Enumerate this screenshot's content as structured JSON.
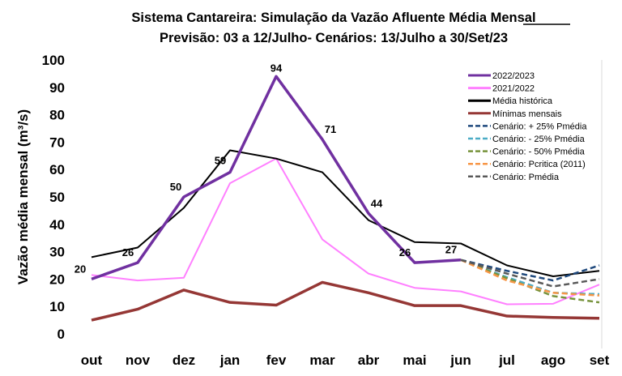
{
  "chart_data": {
    "type": "line",
    "title": "Sistema Cantareira: Simulação da Vazão Afluente Média Mensal",
    "title_underlined_word": "Mensal",
    "subtitle": "Previsão: 03 a 12/Julho- Cenários: 13/Julho a 30/Set/23",
    "xlabel": "",
    "ylabel": "Vazão média mensal (m³/s)",
    "ylim": [
      0,
      100
    ],
    "yticks": [
      0,
      10,
      20,
      30,
      40,
      50,
      60,
      70,
      80,
      90,
      100
    ],
    "grid": false,
    "legend_position": "top-right",
    "categories": [
      "out",
      "nov",
      "dez",
      "jan",
      "fev",
      "mar",
      "abr",
      "mai",
      "jun",
      "jul",
      "ago",
      "set"
    ],
    "series": [
      {
        "name": "2022/2023",
        "color": "#7030A0",
        "dash": false,
        "width": 3.5,
        "values": [
          20,
          26,
          50,
          59,
          94,
          71,
          44,
          26,
          27,
          null,
          null,
          null
        ],
        "labels": true
      },
      {
        "name": "2021/2022",
        "color": "#FF80FF",
        "dash": false,
        "width": 2,
        "values": [
          21.5,
          19.5,
          20.5,
          55,
          64,
          34.5,
          22,
          16.8,
          15.5,
          10.8,
          11,
          18
        ]
      },
      {
        "name": "Média histórica",
        "color": "#000000",
        "dash": false,
        "width": 2,
        "values": [
          28,
          31.5,
          46,
          67,
          64,
          59,
          41.5,
          33.5,
          33,
          25,
          21,
          23
        ]
      },
      {
        "name": "Mínimas mensais",
        "color": "#953735",
        "dash": false,
        "width": 3.5,
        "values": [
          5,
          9,
          16,
          11.5,
          10.5,
          18.8,
          15,
          10.3,
          10.3,
          6.5,
          6,
          5.7
        ]
      },
      {
        "name": "Cenário: + 25% Pmédia",
        "color": "#1F497D",
        "dash": true,
        "width": 2.5,
        "values": [
          null,
          null,
          null,
          null,
          null,
          null,
          null,
          null,
          27,
          23,
          19.5,
          25
        ]
      },
      {
        "name": "Cenário: - 25% Pmédia",
        "color": "#4BACC6",
        "dash": true,
        "width": 2.5,
        "values": [
          null,
          null,
          null,
          null,
          null,
          null,
          null,
          null,
          27,
          20.7,
          15,
          14.5
        ]
      },
      {
        "name": "Cenário: - 50% Pmédia",
        "color": "#77933C",
        "dash": true,
        "width": 2.5,
        "values": [
          null,
          null,
          null,
          null,
          null,
          null,
          null,
          null,
          27,
          20.3,
          13.8,
          11.5
        ]
      },
      {
        "name": "Cenário: Pcritica (2011)",
        "color": "#F79646",
        "dash": true,
        "width": 2.5,
        "values": [
          null,
          null,
          null,
          null,
          null,
          null,
          null,
          null,
          27,
          19.5,
          15,
          14
        ]
      },
      {
        "name": "Cenário: Pmédia",
        "color": "#595959",
        "dash": true,
        "width": 2.5,
        "values": [
          null,
          null,
          null,
          null,
          null,
          null,
          null,
          null,
          27,
          22,
          17.3,
          20
        ]
      }
    ]
  }
}
